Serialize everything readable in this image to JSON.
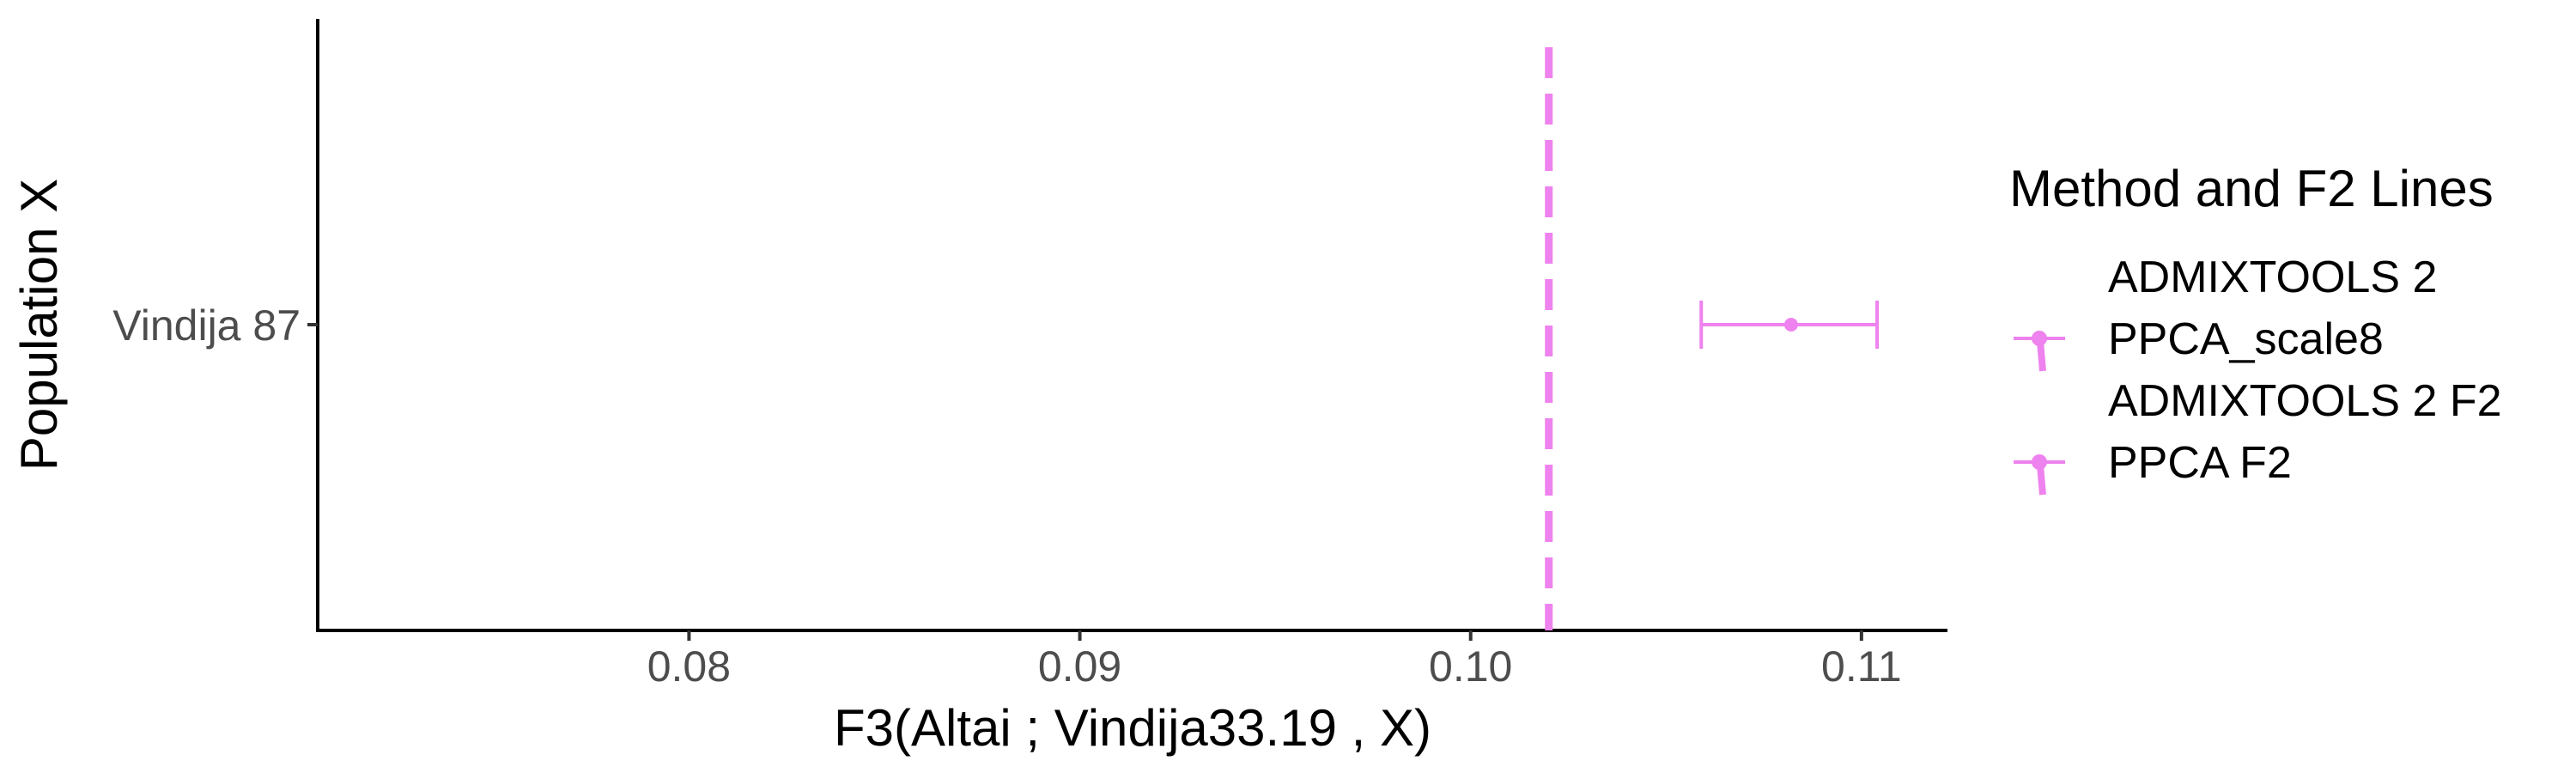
{
  "chart_data": {
    "type": "scatter",
    "xlabel": "F3(Altai ; Vindija33.19 , X)",
    "ylabel": "Population X",
    "xlim": [
      0.0705,
      0.1122
    ],
    "x_ticks": [
      "0.08",
      "0.09",
      "0.10",
      "0.11"
    ],
    "x_tick_values": [
      0.08,
      0.09,
      0.1,
      0.11
    ],
    "categories": [
      "Vindija 87"
    ],
    "series": [
      {
        "name": "PPCA_scale8",
        "color": "#EE82EE",
        "points": [
          {
            "category": "Vindija 87",
            "x": 0.1082,
            "x_low": 0.1059,
            "x_high": 0.1104
          }
        ]
      }
    ],
    "reference_lines": [
      {
        "name": "PPCA F2",
        "orientation": "vertical",
        "x": 0.102,
        "style": "dashed",
        "color": "#EE82EE"
      }
    ],
    "legend": {
      "title": "Method and F2 Lines",
      "placement": "right",
      "entries": [
        {
          "label": "ADMIXTOOLS 2",
          "color": "#FFFFFF",
          "has_point": false
        },
        {
          "label": "PPCA_scale8",
          "color": "#EE82EE",
          "has_point": true
        },
        {
          "label": "ADMIXTOOLS 2 F2",
          "color": "#FFFFFF",
          "has_point": false
        },
        {
          "label": "PPCA F2",
          "color": "#EE82EE",
          "has_point": true
        }
      ]
    },
    "grid": false
  }
}
